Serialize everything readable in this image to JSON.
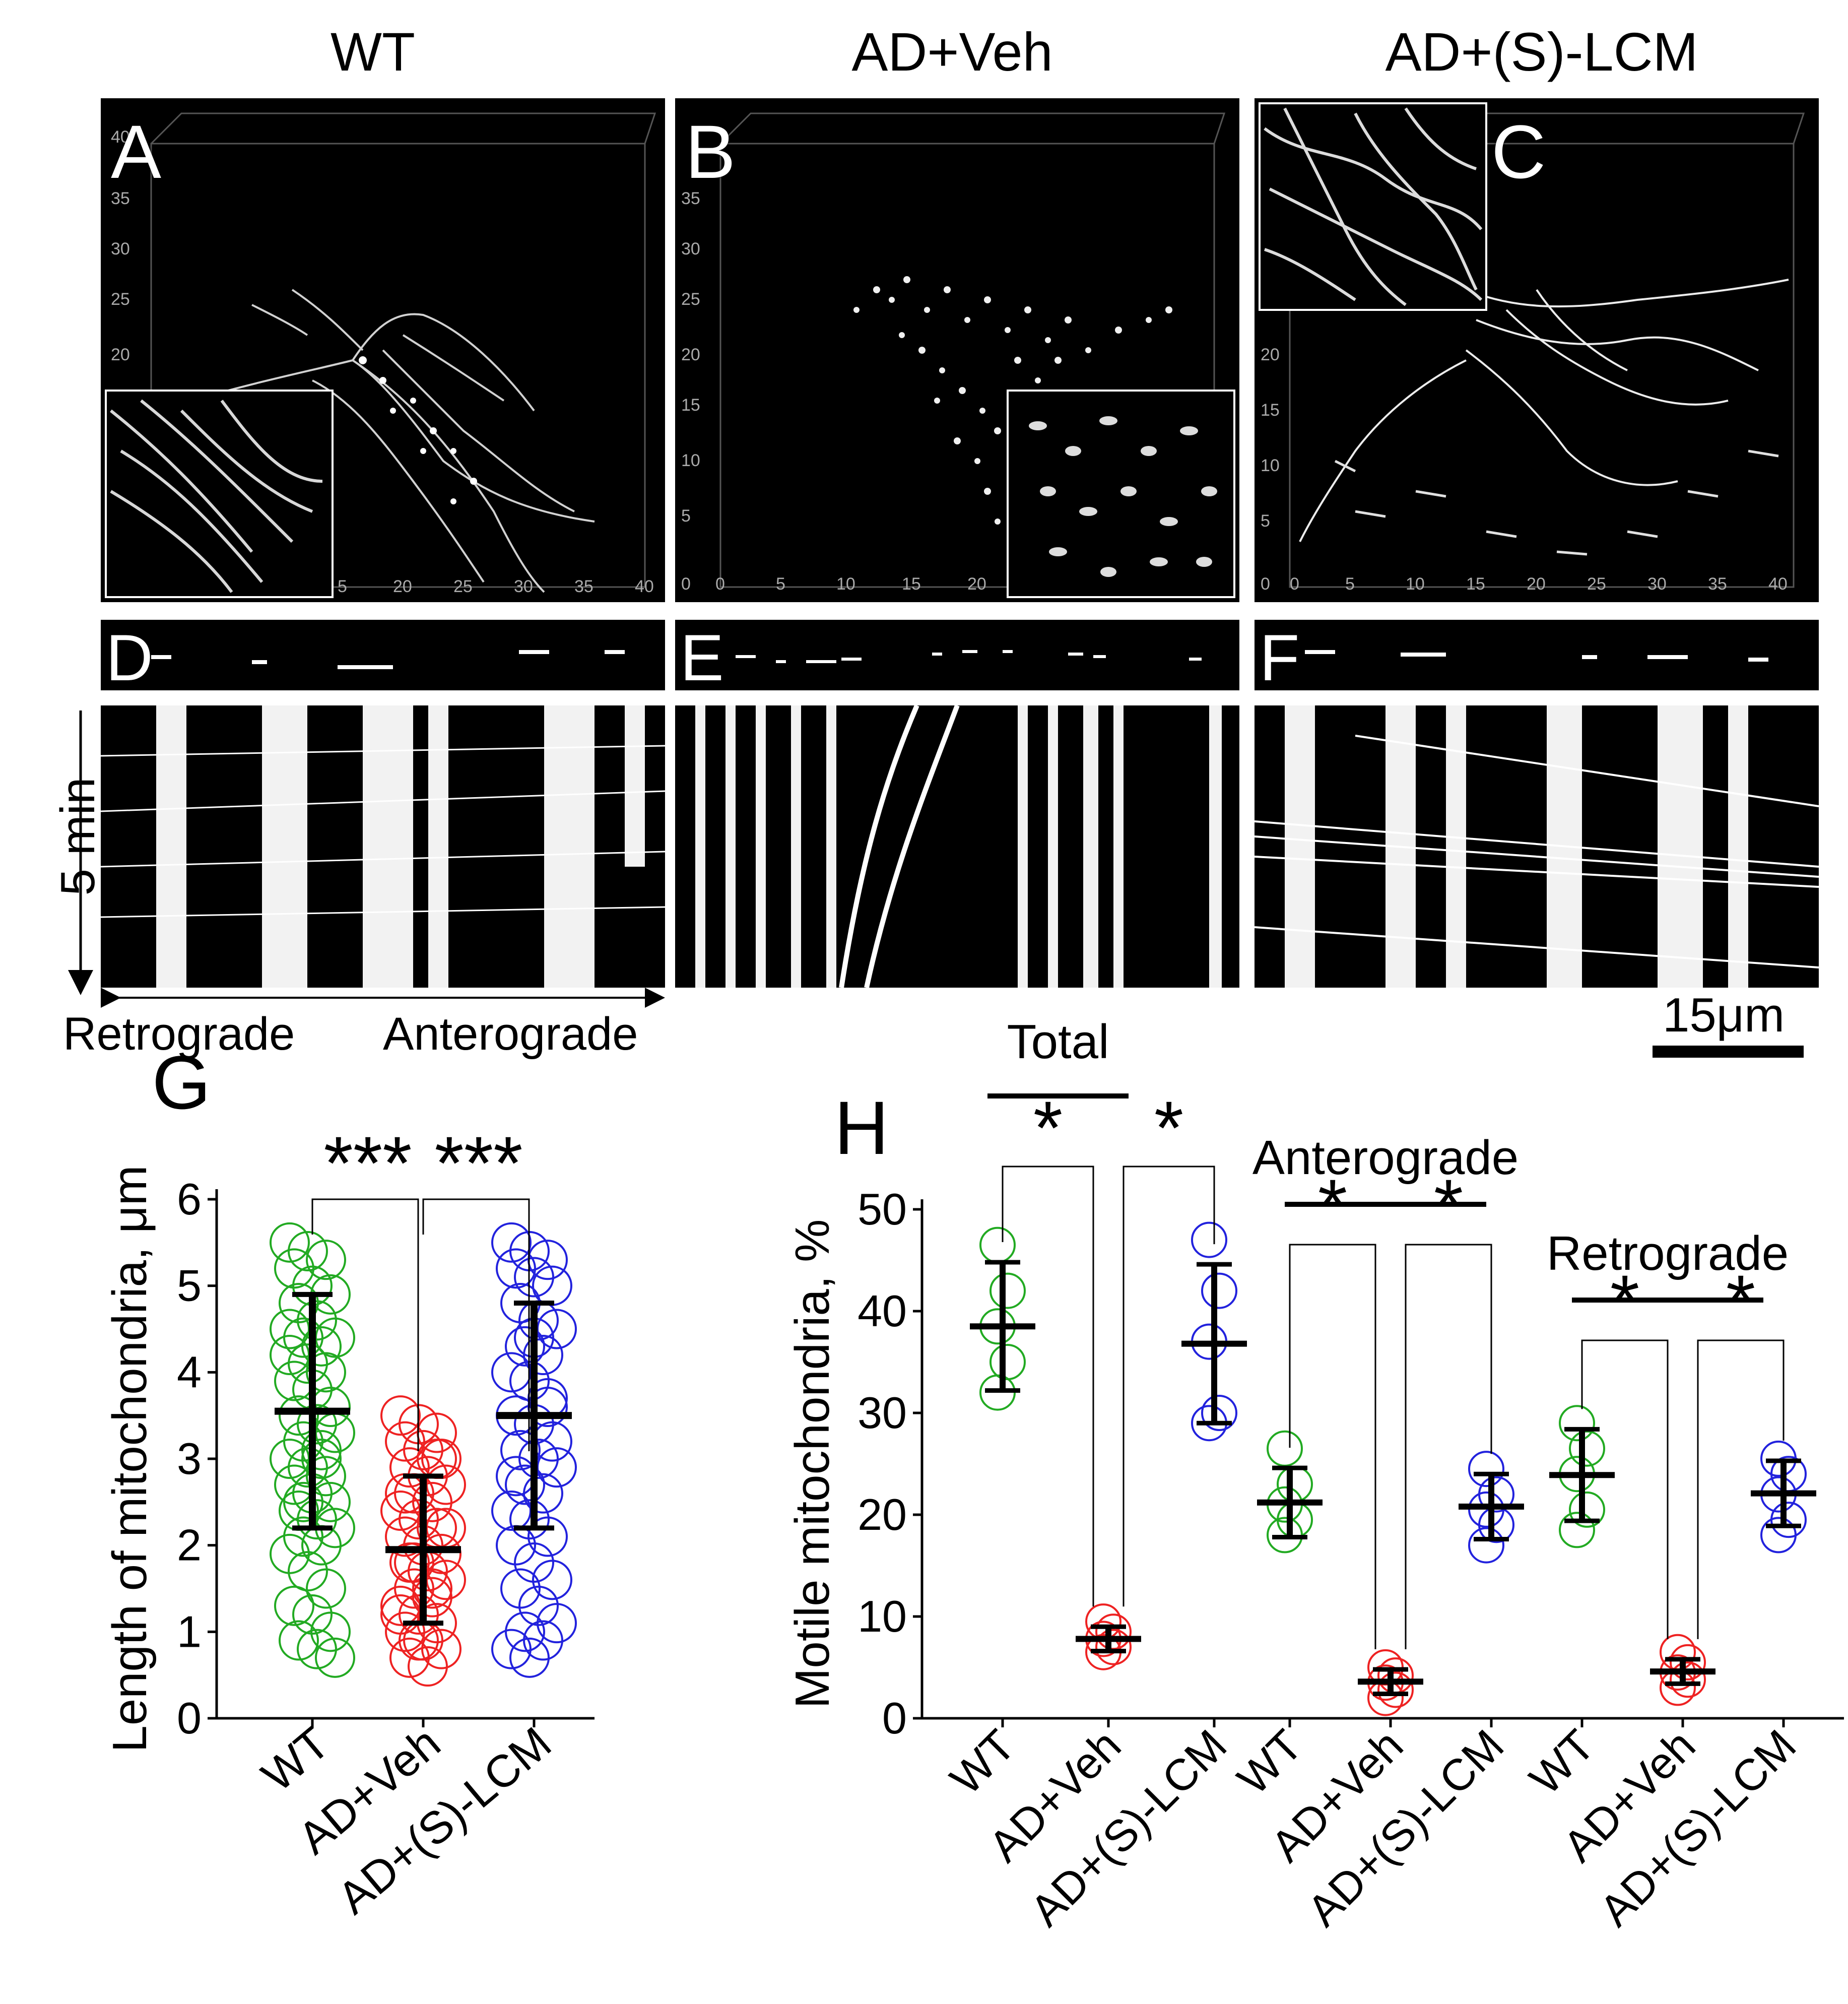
{
  "columns": [
    "WT",
    "AD+Veh",
    "AD+(S)-LCM"
  ],
  "panels": {
    "A": "A",
    "B": "B",
    "C": "C",
    "D": "D",
    "E": "E",
    "F": "F",
    "axis_ticks_A_y": [
      "40",
      "35",
      "30",
      "25",
      "20"
    ],
    "axis_ticks_A_x": [
      "5",
      "20",
      "25",
      "30",
      "35",
      "40"
    ],
    "axis_ticks_B_y": [
      "35",
      "30",
      "25",
      "20",
      "15",
      "10",
      "5",
      "0"
    ],
    "axis_ticks_B_x": [
      "0",
      "5",
      "10",
      "15",
      "20"
    ],
    "axis_ticks_C_y": [
      "20",
      "15",
      "10",
      "5",
      "0"
    ],
    "axis_ticks_C_x": [
      "0",
      "5",
      "10",
      "15",
      "20",
      "25",
      "30",
      "35",
      "40"
    ]
  },
  "kymo": {
    "time_label": "5 min",
    "retro": "Retrograde",
    "antero": "Anterograde",
    "scale_bar": "15μm"
  },
  "chart_data": [
    {
      "panel": "G",
      "type": "scatter",
      "ylabel": "Length of mitochondria, μm",
      "ylim": [
        0,
        6
      ],
      "yticks": [
        0,
        1,
        2,
        3,
        4,
        5,
        6
      ],
      "categories": [
        "WT",
        "AD+Veh",
        "AD+(S)-LCM"
      ],
      "colors": [
        "#22aa22",
        "#ee2222",
        "#2222dd"
      ],
      "means": [
        3.55,
        1.95,
        3.5
      ],
      "sd": [
        1.35,
        0.85,
        1.3
      ],
      "points": [
        [
          5.5,
          5.4,
          5.3,
          5.2,
          5.0,
          4.9,
          4.8,
          4.6,
          4.4,
          4.4,
          4.3,
          4.2,
          4.1,
          4.0,
          3.9,
          3.8,
          3.6,
          3.5,
          3.4,
          3.3,
          3.2,
          3.1,
          3.0,
          2.9,
          2.8,
          2.7,
          2.6,
          2.5,
          2.4,
          2.3,
          2.2,
          2.1,
          2.0,
          1.9,
          1.7,
          1.5,
          1.3,
          1.2,
          1.0,
          0.9,
          0.8,
          0.7,
          2.5,
          3.0,
          4.5
        ],
        [
          3.5,
          3.4,
          3.3,
          3.2,
          3.1,
          3.0,
          2.9,
          2.8,
          2.7,
          2.6,
          2.5,
          2.4,
          2.3,
          2.2,
          2.1,
          2.0,
          1.9,
          1.8,
          1.7,
          1.6,
          1.5,
          1.4,
          1.3,
          1.2,
          1.1,
          1.0,
          0.9,
          0.8,
          0.7,
          0.6,
          2.2,
          1.8,
          1.5,
          1.2,
          0.9,
          3.0,
          2.6
        ],
        [
          5.5,
          5.4,
          5.3,
          5.2,
          5.1,
          5.0,
          4.8,
          4.6,
          4.5,
          4.3,
          4.2,
          4.0,
          3.9,
          3.7,
          3.5,
          3.4,
          3.2,
          3.1,
          3.0,
          2.9,
          2.7,
          2.6,
          2.4,
          2.3,
          2.1,
          2.0,
          1.8,
          1.6,
          1.5,
          1.3,
          1.1,
          1.0,
          0.9,
          0.8,
          0.7,
          3.6,
          2.8,
          4.4
        ]
      ],
      "significance": [
        {
          "from": 0,
          "to": 1,
          "label": "***"
        },
        {
          "from": 1,
          "to": 2,
          "label": "***"
        }
      ]
    },
    {
      "panel": "H",
      "type": "scatter",
      "ylabel": "Motile mitochondria, %",
      "ylim": [
        0,
        50
      ],
      "yticks": [
        0,
        10,
        20,
        30,
        40,
        50
      ],
      "groups": [
        {
          "name": "Total",
          "categories": [
            "WT",
            "AD+Veh",
            "AD+(S)-LCM"
          ],
          "means": [
            38.5,
            7.8,
            36.8
          ],
          "sd": [
            6.3,
            1.2,
            7.8
          ],
          "points": [
            [
              46.5,
              42.0,
              38.5,
              35.0,
              32.0
            ],
            [
              9.5,
              8.5,
              7.8,
              7.0,
              6.5
            ],
            [
              47.0,
              42.0,
              37.0,
              30.0,
              29.0
            ]
          ]
        },
        {
          "name": "Anterograde",
          "categories": [
            "WT",
            "AD+Veh",
            "AD+(S)-LCM"
          ],
          "means": [
            21.2,
            3.6,
            20.8
          ],
          "sd": [
            3.4,
            1.2,
            3.2
          ],
          "points": [
            [
              26.5,
              23.0,
              21.0,
              19.5,
              18.0
            ],
            [
              5.0,
              4.2,
              3.5,
              2.8,
              2.0
            ],
            [
              24.5,
              22.0,
              20.5,
              19.0,
              17.0
            ]
          ]
        },
        {
          "name": "Retrograde",
          "categories": [
            "WT",
            "AD+Veh",
            "AD+(S)-LCM"
          ],
          "means": [
            23.9,
            4.6,
            22.1
          ],
          "sd": [
            4.5,
            1.2,
            3.2
          ],
          "points": [
            [
              29.0,
              26.5,
              24.0,
              20.5,
              18.5
            ],
            [
              6.5,
              5.5,
              4.5,
              3.8,
              3.0
            ],
            [
              25.5,
              24.0,
              22.0,
              19.5,
              18.0
            ]
          ]
        }
      ],
      "colors": [
        "#22aa22",
        "#ee2222",
        "#2222dd"
      ],
      "sig_label": "*"
    }
  ],
  "chart_labels": {
    "G": "G",
    "H": "H"
  }
}
